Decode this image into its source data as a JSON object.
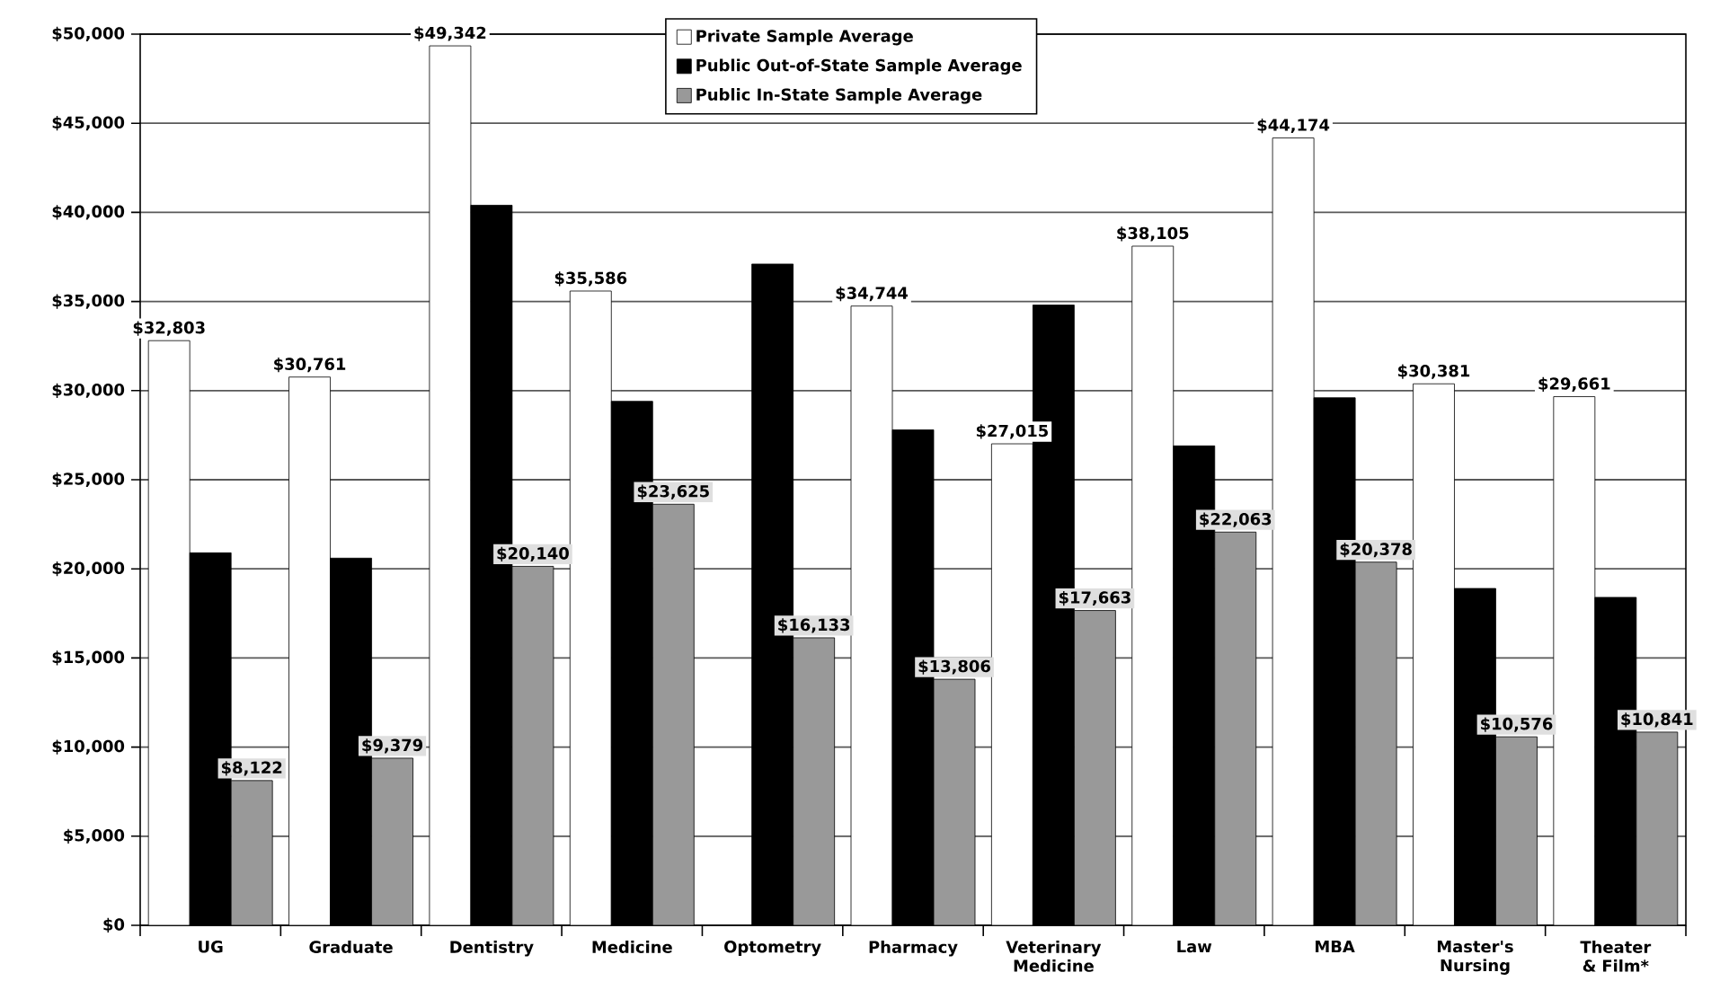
{
  "chart_data": {
    "type": "bar",
    "categories": [
      "UG",
      "Graduate",
      "Dentistry",
      "Medicine",
      "Optometry",
      "Pharmacy",
      "Veterinary Medicine",
      "Law",
      "MBA",
      "Master's Nursing",
      "Theater & Film*"
    ],
    "series": [
      {
        "name": "Private Sample Average",
        "color": "#ffffff",
        "values": [
          32803,
          30761,
          49342,
          35586,
          null,
          34744,
          27015,
          38105,
          44174,
          30381,
          29661
        ],
        "value_labels": [
          "$32,803",
          "$30,761",
          "$49,342",
          "$35,586",
          null,
          "$34,744",
          "$27,015",
          "$38,105",
          "$44,174",
          "$30,381",
          "$29,661"
        ]
      },
      {
        "name": "Public Out-of-State Sample Average",
        "color": "#000000",
        "values": [
          20900,
          20600,
          40400,
          29400,
          37100,
          27800,
          34800,
          26900,
          29600,
          18900,
          18400
        ]
      },
      {
        "name": "Public In-State Sample Average",
        "color": "#999999",
        "values": [
          8122,
          9379,
          20140,
          23625,
          16133,
          13806,
          17663,
          22063,
          20378,
          10576,
          10841
        ],
        "value_labels": [
          "$8,122",
          "$9,379",
          "$20,140",
          "$23,625",
          "$16,133",
          "$13,806",
          "$17,663",
          "$22,063",
          "$20,378",
          "$10,576",
          "$10,841"
        ]
      }
    ],
    "ylim": [
      0,
      50000
    ],
    "yticks": [
      {
        "value": 0,
        "label": "$0"
      },
      {
        "value": 5000,
        "label": "$5,000"
      },
      {
        "value": 10000,
        "label": "$10,000"
      },
      {
        "value": 15000,
        "label": "$15,000"
      },
      {
        "value": 20000,
        "label": "$20,000"
      },
      {
        "value": 25000,
        "label": "$25,000"
      },
      {
        "value": 30000,
        "label": "$30,000"
      },
      {
        "value": 35000,
        "label": "$35,000"
      },
      {
        "value": 40000,
        "label": "$40,000"
      },
      {
        "value": 45000,
        "label": "$45,000"
      },
      {
        "value": 50000,
        "label": "$50,000"
      }
    ],
    "grid": "y",
    "legend": "top"
  }
}
